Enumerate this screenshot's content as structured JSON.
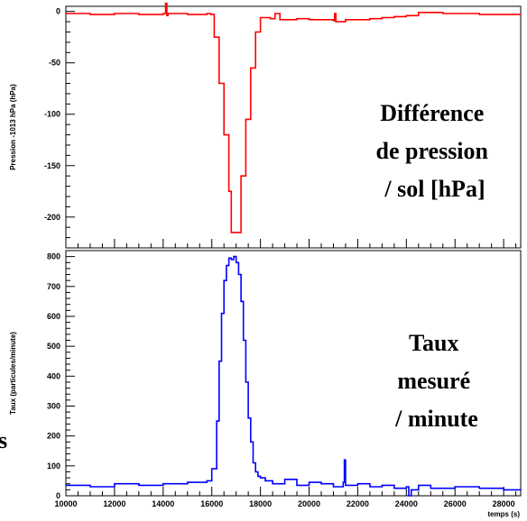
{
  "side_mark": "s",
  "chart_data": [
    {
      "type": "line",
      "ylabel": "Pression -1013 hPa (hPa)",
      "xlim": [
        10000,
        28700
      ],
      "ylim": [
        -230,
        5
      ],
      "yticks": [
        0,
        -50,
        -100,
        -150,
        -200
      ],
      "annotation": [
        "Différence",
        "de pression",
        "/ sol [hPa]"
      ],
      "series": [
        {
          "color": "#ff0000",
          "x": [
            10000,
            11000,
            12000,
            13000,
            14000,
            14100,
            14150,
            14200,
            15000,
            15800,
            15960,
            16100,
            16300,
            16500,
            16700,
            16800,
            17000,
            17200,
            17400,
            17600,
            17800,
            18000,
            18200,
            18400,
            18600,
            18700,
            18800,
            19000,
            19500,
            20000,
            20500,
            21000,
            21050,
            21100,
            21500,
            22000,
            22500,
            23000,
            23500,
            24000,
            24500,
            25000,
            25500,
            26000,
            27000,
            28000,
            28700
          ],
          "y": [
            -2,
            -3,
            -2,
            -3,
            -2,
            8,
            -4,
            -2,
            -3,
            -2,
            -3,
            -25,
            -70,
            -120,
            -175,
            -215,
            -215,
            -160,
            -105,
            -55,
            -20,
            -6,
            -6,
            -7,
            -2,
            -2,
            -8,
            -8,
            -7,
            -8,
            -8,
            -9,
            -2,
            -10,
            -8,
            -8,
            -7,
            -6,
            -5,
            -4,
            -1,
            -1,
            -2,
            -2,
            -3,
            -3,
            -3
          ]
        }
      ]
    },
    {
      "type": "line",
      "xlabel": "temps (s)",
      "ylabel": "Taux (particules/minute)",
      "xlim": [
        10000,
        28700
      ],
      "ylim": [
        0,
        820
      ],
      "xticks": [
        10000,
        12000,
        14000,
        16000,
        18000,
        20000,
        22000,
        24000,
        26000,
        28000
      ],
      "yticks": [
        0,
        100,
        200,
        300,
        400,
        500,
        600,
        700,
        800
      ],
      "annotation": [
        "Taux",
        "mesuré",
        "/ minute"
      ],
      "series": [
        {
          "color": "#0000ff",
          "x": [
            10000,
            11000,
            12000,
            13000,
            14000,
            15000,
            15800,
            16000,
            16200,
            16300,
            16400,
            16500,
            16600,
            16700,
            16800,
            16900,
            17000,
            17100,
            17200,
            17300,
            17400,
            17500,
            17600,
            17700,
            17800,
            17900,
            18000,
            18200,
            18500,
            19000,
            19500,
            20000,
            20500,
            21000,
            21400,
            21450,
            21500,
            22000,
            22500,
            23000,
            23500,
            24000,
            24100,
            24200,
            24500,
            25000,
            26000,
            27000,
            28000,
            28700
          ],
          "y": [
            35,
            30,
            40,
            35,
            40,
            45,
            50,
            90,
            250,
            450,
            610,
            720,
            770,
            795,
            790,
            800,
            780,
            740,
            650,
            520,
            380,
            260,
            180,
            110,
            80,
            65,
            60,
            50,
            40,
            55,
            35,
            45,
            40,
            30,
            45,
            120,
            35,
            40,
            30,
            35,
            25,
            30,
            0,
            20,
            35,
            25,
            30,
            25,
            20,
            22
          ]
        }
      ]
    }
  ]
}
